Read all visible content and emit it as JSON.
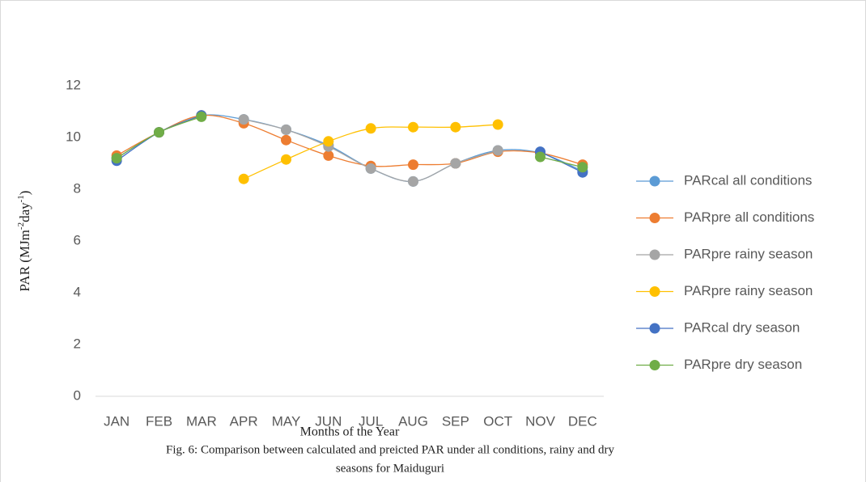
{
  "chart_data": {
    "type": "line",
    "y_label": [
      "PAR (MJm",
      "-2",
      "day",
      "-1",
      ")"
    ],
    "x_label": "Months of the Year",
    "caption": [
      "Fig. 6: Comparison between calculated and preicted PAR under all conditions, rainy and dry",
      "seasons for Maiduguri"
    ],
    "categories": [
      "JAN",
      "FEB",
      "MAR",
      "APR",
      "MAY",
      "JUN",
      "JUL",
      "AUG",
      "SEP",
      "OCT",
      "NOV",
      "DEC"
    ],
    "ylim": [
      0,
      12
    ],
    "yticks": [
      0,
      2,
      4,
      6,
      8,
      10,
      12
    ],
    "grid": false,
    "legend": "right",
    "smooth": true,
    "series": [
      {
        "name": "PARcal all conditions",
        "color": "#5b9bd5",
        "values": [
          9.2,
          10.2,
          10.85,
          10.7,
          10.3,
          9.7,
          8.8,
          8.3,
          9.0,
          9.5,
          9.4,
          8.7
        ]
      },
      {
        "name": "PARpre all conditions",
        "color": "#ed7d31",
        "values": [
          9.3,
          10.2,
          10.85,
          10.55,
          9.9,
          9.3,
          8.9,
          8.95,
          9.0,
          9.45,
          9.4,
          8.95
        ]
      },
      {
        "name": "PARpre rainy season",
        "color": "#a5a5a5",
        "values": [
          null,
          null,
          null,
          10.7,
          10.3,
          9.65,
          8.8,
          8.3,
          9.0,
          9.5,
          null,
          null
        ]
      },
      {
        "name": "PARpre rainy season",
        "color": "#ffc000",
        "values": [
          null,
          null,
          null,
          8.4,
          9.15,
          9.85,
          10.35,
          10.4,
          10.4,
          10.5,
          null,
          null
        ]
      },
      {
        "name": "PARcal dry season",
        "color": "#4472c4",
        "values": [
          9.1,
          10.2,
          10.85,
          null,
          null,
          null,
          null,
          null,
          null,
          null,
          9.45,
          8.65
        ]
      },
      {
        "name": "PARpre dry season",
        "color": "#70ad47",
        "values": [
          9.2,
          10.2,
          10.8,
          null,
          null,
          null,
          null,
          null,
          null,
          null,
          9.25,
          8.85
        ]
      }
    ]
  }
}
